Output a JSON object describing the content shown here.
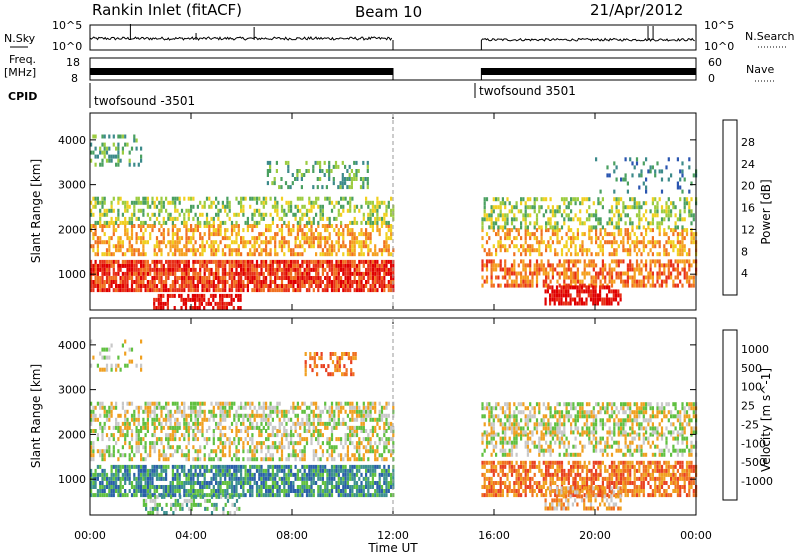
{
  "header": {
    "title": "Rankin Inlet (fitACF)",
    "beam": "Beam 10",
    "date": "21/Apr/2012"
  },
  "panels": {
    "nsky_label": "N.Sky",
    "nsky_tick_hi": "10^5",
    "nsky_tick_lo": "10^0",
    "nsearch_label": "N.Search",
    "nsearch_tick_hi": "10^5",
    "nsearch_tick_lo": "10^0",
    "freq_label_1": "Freq.",
    "freq_label_2": "[MHz]",
    "freq_tick_hi": "18",
    "freq_tick_lo": "8",
    "nave_label": "Nave",
    "nave_tick_hi": "60",
    "nave_tick_lo": "0",
    "cpid_label": "CPID",
    "cpid_1": "twofsound -3501",
    "cpid_2": "twofsound 3501"
  },
  "colors": {
    "power": [
      "#1010e0",
      "#2a55b0",
      "#3c8a8a",
      "#4aa060",
      "#9ccc40",
      "#f0d020",
      "#f5a020",
      "#f07020",
      "#e83018",
      "#e00000"
    ],
    "velocity": [
      "#2040c0",
      "#2a60a8",
      "#3c9090",
      "#60c040",
      "#c8c8c8",
      "#f0a020",
      "#f07020",
      "#e84020",
      "#e00000"
    ]
  },
  "chart_data": [
    {
      "type": "heatmap",
      "title": "Power",
      "xlabel": "Time UT",
      "ylabel": "Slant Range [km]",
      "xticks": [
        "00:00",
        "04:00",
        "08:00",
        "12:00",
        "16:00",
        "20:00",
        "00:00"
      ],
      "yticks": [
        "1000",
        "2000",
        "3000",
        "4000"
      ],
      "ylim": [
        200,
        4600
      ],
      "colorbar_label": "Power [dB]",
      "colorbar_ticks": [
        "28",
        "24",
        "20",
        "16",
        "12",
        "8",
        "4"
      ],
      "colorbar_range": [
        0,
        32
      ],
      "data_gap": [
        "12:00",
        "15:30"
      ]
    },
    {
      "type": "heatmap",
      "title": "Velocity",
      "xlabel": "Time UT",
      "ylabel": "Slant Range [km]",
      "xticks": [
        "00:00",
        "04:00",
        "08:00",
        "12:00",
        "16:00",
        "20:00",
        "00:00"
      ],
      "yticks": [
        "1000",
        "2000",
        "3000",
        "4000"
      ],
      "ylim": [
        200,
        4600
      ],
      "colorbar_label": "Velocity [m s^-1]",
      "colorbar_ticks": [
        "1000",
        "500",
        "100",
        "25",
        "-25",
        "-100",
        "-500",
        "-1000"
      ],
      "data_gap": [
        "12:00",
        "15:30"
      ]
    }
  ],
  "xaxis_label": "Time UT"
}
